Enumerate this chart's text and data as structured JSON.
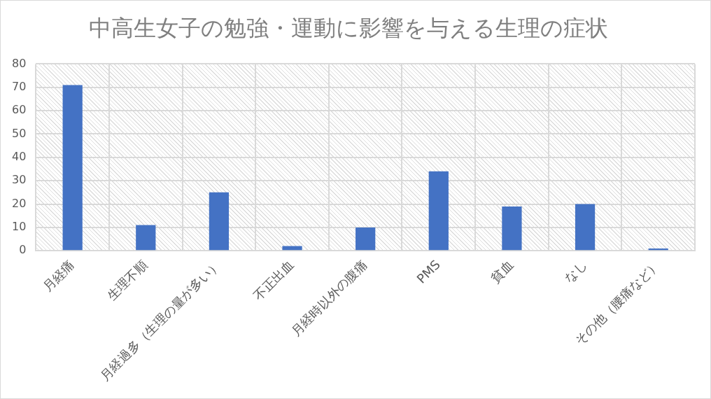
{
  "chart_data": {
    "type": "bar",
    "title": "中高生女子の勉強・運動に影響を与える生理の症状",
    "categories": [
      "月経痛",
      "生理不順",
      "月経過多（生理の量が多い）",
      "不正出血",
      "月経時以外の腹痛",
      "PMS",
      "貧血",
      "なし",
      "その他（腰痛など）"
    ],
    "values": [
      71,
      11,
      25,
      2,
      10,
      34,
      19,
      20,
      1
    ],
    "color": "#4472c4",
    "ylim": [
      0,
      80
    ],
    "yticks": [
      0,
      10,
      20,
      30,
      40,
      50,
      60,
      70,
      80
    ],
    "grid": true
  }
}
